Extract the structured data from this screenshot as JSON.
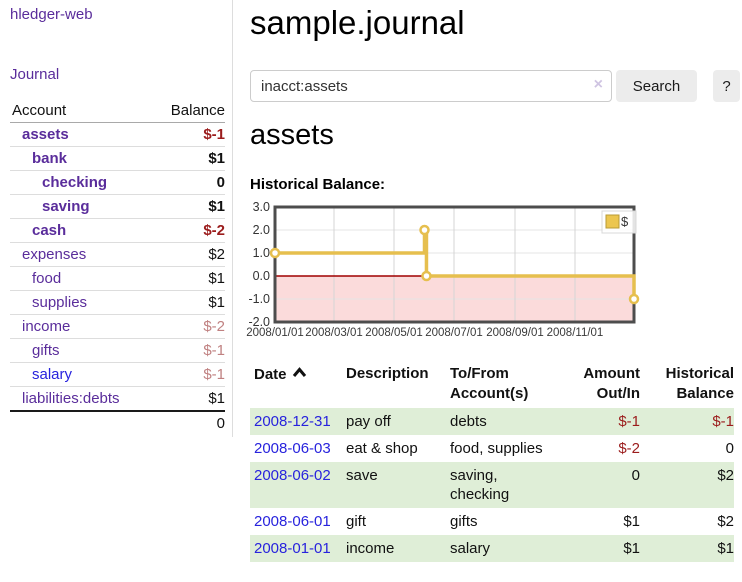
{
  "app": {
    "brand": "hledger-web"
  },
  "sidebar": {
    "journal_link": "Journal",
    "account_table": {
      "header": {
        "account": "Account",
        "balance": "Balance"
      },
      "rows": [
        {
          "account": "assets",
          "balance": "$-1",
          "depth": 1,
          "bold": true,
          "balance_style": "neg-strong"
        },
        {
          "account": "bank",
          "balance": "$1",
          "depth": 2,
          "bold": true,
          "balance_style": "pos-strong"
        },
        {
          "account": "checking",
          "balance": "0",
          "depth": 3,
          "bold": true,
          "balance_style": "pos-strong"
        },
        {
          "account": "saving",
          "balance": "$1",
          "depth": 3,
          "bold": true,
          "balance_style": "pos-strong"
        },
        {
          "account": "cash",
          "balance": "$-2",
          "depth": 2,
          "bold": true,
          "balance_style": "neg-strong"
        },
        {
          "account": "expenses",
          "balance": "$2",
          "depth": 1,
          "bold": false,
          "balance_style": "pos"
        },
        {
          "account": "food",
          "balance": "$1",
          "depth": 2,
          "bold": false,
          "balance_style": "pos"
        },
        {
          "account": "supplies",
          "balance": "$1",
          "depth": 2,
          "bold": false,
          "balance_style": "pos"
        },
        {
          "account": "income",
          "balance": "$-2",
          "depth": 1,
          "bold": false,
          "balance_style": "neg-soft"
        },
        {
          "account": "gifts",
          "balance": "$-1",
          "depth": 2,
          "bold": false,
          "balance_style": "neg-soft"
        },
        {
          "account": "salary",
          "balance": "$-1",
          "depth": 2,
          "bold": false,
          "balance_style": "neg-soft",
          "link_color": "blue"
        },
        {
          "account": "liabilities:debts",
          "balance": "$1",
          "depth": 1,
          "bold": false,
          "balance_style": "pos"
        }
      ],
      "total": "0"
    }
  },
  "main": {
    "title": "sample.journal",
    "search": {
      "value": "inacct:assets",
      "clear_icon": "×",
      "search_button": "Search",
      "help_button": "?"
    },
    "account_heading": "assets",
    "chart_heading": "Historical Balance:"
  },
  "chart_data": {
    "type": "line",
    "step": true,
    "title": "Historical Balance",
    "series": [
      {
        "name": "$",
        "color": "#e6bf4e",
        "points": [
          {
            "date": "2008-01-01",
            "value": 1
          },
          {
            "date": "2008-06-01",
            "value": 2
          },
          {
            "date": "2008-06-03",
            "value": 0
          },
          {
            "date": "2008-12-31",
            "value": -1
          }
        ]
      }
    ],
    "ylim": [
      -2,
      3
    ],
    "yticks": [
      3.0,
      2.0,
      1.0,
      0.0,
      -1.0,
      -2.0
    ],
    "xtick_labels": [
      "2008/01/01",
      "2008/03/01",
      "2008/05/01",
      "2008/07/01",
      "2008/09/01",
      "2008/11/01"
    ],
    "xtick_dates": [
      "2008-01-01",
      "2008-03-01",
      "2008-05-01",
      "2008-07-01",
      "2008-09-01",
      "2008-11-01"
    ],
    "xrange": [
      "2008-01-01",
      "2008-12-31"
    ],
    "legend": {
      "label": "$",
      "position": "top-right"
    },
    "grid": true,
    "negative_region": true
  },
  "register": {
    "headers": [
      {
        "label": "Date",
        "sorted": "ascending"
      },
      {
        "label": "Description"
      },
      {
        "label": "To/From Account(s)"
      },
      {
        "label": "Amount Out/In",
        "align": "right"
      },
      {
        "label": "Historical Balance",
        "align": "right"
      }
    ],
    "rows": [
      {
        "date": "2008-12-31",
        "description": "pay off",
        "accounts": "debts",
        "amount": "$-1",
        "amount_neg": true,
        "balance": "$-1",
        "balance_neg": true,
        "shade": true
      },
      {
        "date": "2008-06-03",
        "description": "eat & shop",
        "accounts": "food, supplies",
        "amount": "$-2",
        "amount_neg": true,
        "balance": "0",
        "balance_neg": false,
        "shade": false
      },
      {
        "date": "2008-06-02",
        "description": "save",
        "accounts": "saving, checking",
        "amount": "0",
        "amount_neg": false,
        "balance": "$2",
        "balance_neg": false,
        "shade": true
      },
      {
        "date": "2008-06-01",
        "description": "gift",
        "accounts": "gifts",
        "amount": "$1",
        "amount_neg": false,
        "balance": "$2",
        "balance_neg": false,
        "shade": false
      },
      {
        "date": "2008-01-01",
        "description": "income",
        "accounts": "salary",
        "amount": "$1",
        "amount_neg": false,
        "balance": "$1",
        "balance_neg": false,
        "shade": true
      }
    ]
  },
  "colors": {
    "link_purple": "#5a2d9b",
    "link_blue": "#2823dd",
    "negative_strong": "#9b1c1c",
    "negative_soft": "#c08181",
    "row_shade_green": "#dfeed7",
    "chart_line_gold": "#e6bf4e",
    "chart_negative_region": "#fbdbdb",
    "chart_zero_line": "#a00000",
    "chart_border": "#4d4d4d",
    "button_gray": "#ececec"
  }
}
